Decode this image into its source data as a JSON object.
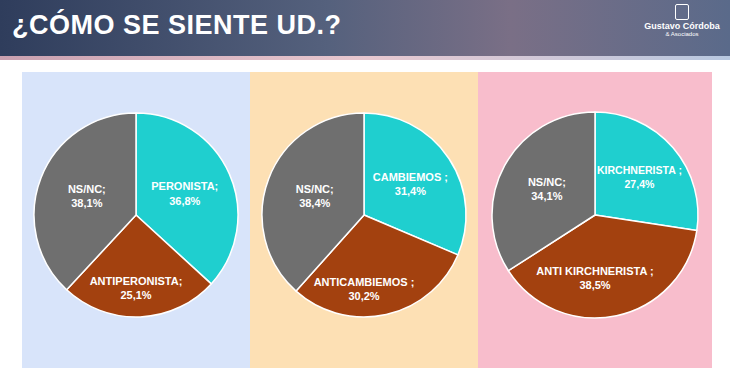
{
  "title": "¿CÓMO SE SIENTE UD.?",
  "logo": {
    "name": "Gustavo Córdoba",
    "sub": "& Asociados"
  },
  "chart_data": [
    {
      "type": "pie",
      "background": "#d8e4fa",
      "categories": [
        "PERONISTA;",
        "ANTIPERONISTA;",
        "NS/NC;"
      ],
      "values": [
        36.8,
        25.1,
        38.1
      ],
      "value_labels": [
        "36,8%",
        "25,1%",
        "38,1%"
      ],
      "colors": [
        "#1fcfcf",
        "#a3410f",
        "#6f6f6f"
      ],
      "data_labels": true
    },
    {
      "type": "pie",
      "background": "#fde0b4",
      "categories": [
        "CAMBIEMOS ;",
        "ANTICAMBIEMOS ;",
        "NS/NC;"
      ],
      "values": [
        31.4,
        30.2,
        38.4
      ],
      "value_labels": [
        "31,4%",
        "30,2%",
        "38,4%"
      ],
      "colors": [
        "#1fcfcf",
        "#a3410f",
        "#6f6f6f"
      ],
      "data_labels": true
    },
    {
      "type": "pie",
      "background": "#f8bdcc",
      "categories": [
        "KIRCHNERISTA ;",
        "ANTI KIRCHNERISTA ;",
        "NS/NC;"
      ],
      "values": [
        27.4,
        38.5,
        34.1
      ],
      "value_labels": [
        "27,4%",
        "38,5%",
        "34,1%"
      ],
      "colors": [
        "#1fcfcf",
        "#a3410f",
        "#6f6f6f"
      ],
      "data_labels": true
    }
  ]
}
